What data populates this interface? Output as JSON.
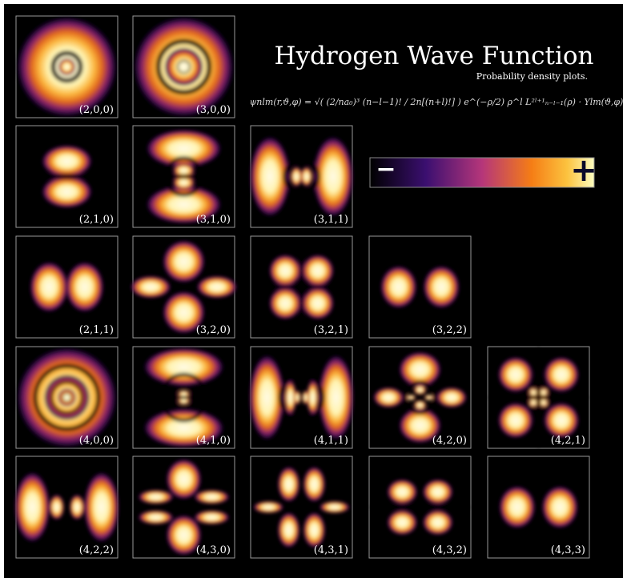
{
  "header": {
    "title": "Hydrogen Wave Function",
    "subtitle": "Probability density plots.",
    "formula": "ψnlm(r,ϑ,φ) = √( (2/na₀)³ (n−l−1)! / 2n[(n+l)!] ) e^(−ρ/2) ρ^l L²ˡ⁺¹ₙ₋ₗ₋₁(ρ) · Ylm(ϑ,φ)"
  },
  "colorbar": {
    "min_label": "−",
    "max_label": "+"
  },
  "orbitals": [
    "(2,0,0)",
    "(3,0,0)",
    "(2,1,0)",
    "(3,1,0)",
    "(3,1,1)",
    "(2,1,1)",
    "(3,2,0)",
    "(3,2,1)",
    "(3,2,2)",
    "(4,0,0)",
    "(4,1,0)",
    "(4,1,1)",
    "(4,2,0)",
    "(4,2,1)",
    "(4,2,2)",
    "(4,3,0)",
    "(4,3,1)",
    "(4,3,2)",
    "(4,3,3)"
  ]
}
